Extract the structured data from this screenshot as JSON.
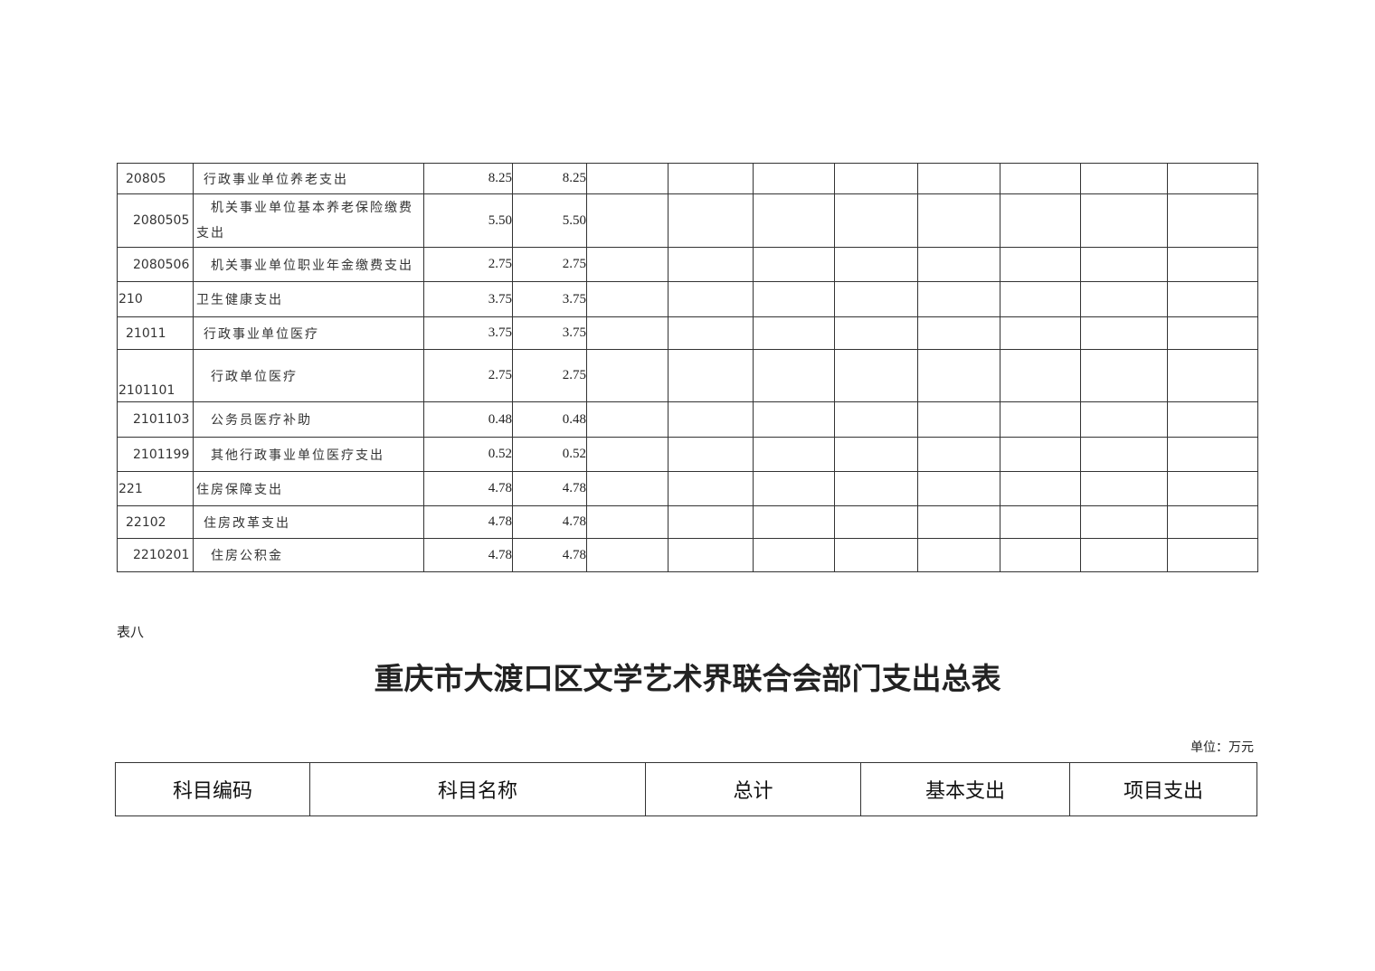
{
  "expense_table": {
    "rows": [
      {
        "code": "20805",
        "name": "行政事业单位养老支出",
        "total": "8.25",
        "basic": "8.25",
        "level": 2
      },
      {
        "code": "2080505",
        "name": "机关事业单位基本养老保险缴费支出",
        "total": "5.50",
        "basic": "5.50",
        "level": 3
      },
      {
        "code": "2080506",
        "name": "机关事业单位职业年金缴费支出",
        "total": "2.75",
        "basic": "2.75",
        "level": 3
      },
      {
        "code": "210",
        "name": "卫生健康支出",
        "total": "3.75",
        "basic": "3.75",
        "level": 1
      },
      {
        "code": "21011",
        "name": "行政事业单位医疗",
        "total": "3.75",
        "basic": "3.75",
        "level": 2
      },
      {
        "code": "2101101",
        "name": "行政单位医疗",
        "total": "2.75",
        "basic": "2.75",
        "level": 3,
        "code_bottom": true
      },
      {
        "code": "2101103",
        "name": "公务员医疗补助",
        "total": "0.48",
        "basic": "0.48",
        "level": 3
      },
      {
        "code": "2101199",
        "name": "其他行政事业单位医疗支出",
        "total": "0.52",
        "basic": "0.52",
        "level": 3
      },
      {
        "code": "221",
        "name": "住房保障支出",
        "total": "4.78",
        "basic": "4.78",
        "level": 1
      },
      {
        "code": "22102",
        "name": "住房改革支出",
        "total": "4.78",
        "basic": "4.78",
        "level": 2
      },
      {
        "code": "2210201",
        "name": "住房公积金",
        "total": "4.78",
        "basic": "4.78",
        "level": 3
      }
    ]
  },
  "table8": {
    "note": "表八",
    "title": "重庆市大渡口区文学艺术界联合会部门支出总表",
    "unit": "单位：万元",
    "headers": [
      "科目编码",
      "科目名称",
      "总计",
      "基本支出",
      "项目支出"
    ]
  }
}
